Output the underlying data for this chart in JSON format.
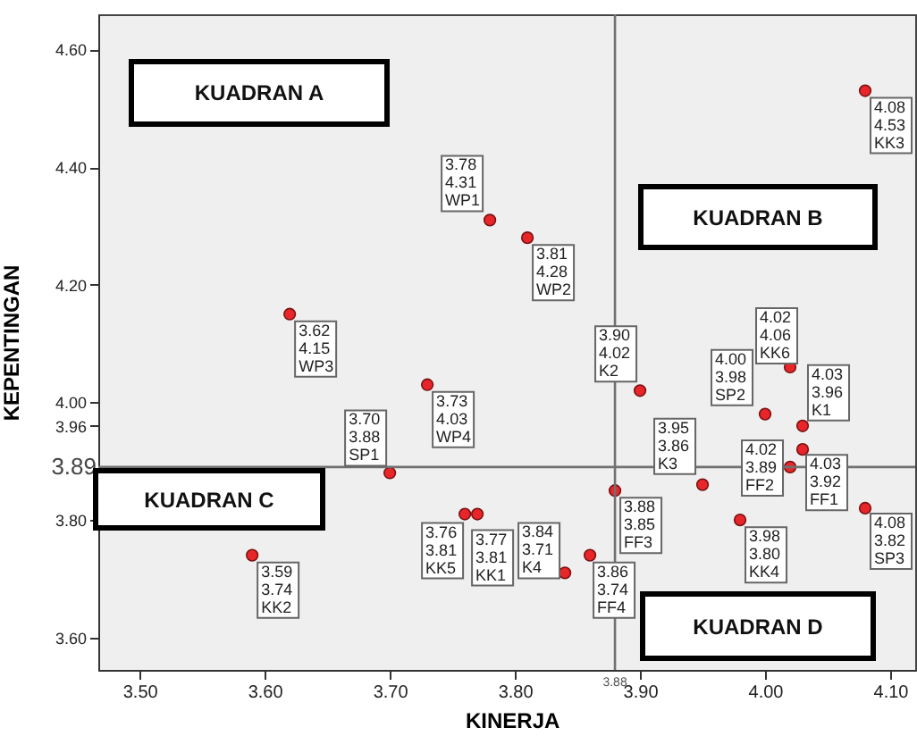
{
  "chart_data": {
    "type": "scatter",
    "xlabel": "KINERJA",
    "ylabel": "KEPENTINGAN",
    "xlim": [
      3.467,
      4.12
    ],
    "xticks": [
      {
        "value": 3.5,
        "label": "3.50"
      },
      {
        "value": 3.6,
        "label": "3.60"
      },
      {
        "value": 3.7,
        "label": "3.70"
      },
      {
        "value": 3.8,
        "label": "3.80"
      },
      {
        "value": 3.9,
        "label": "3.90"
      },
      {
        "value": 4.0,
        "label": "4.00"
      },
      {
        "value": 4.1,
        "label": "4.10"
      }
    ],
    "ylim": [
      3.545,
      4.66
    ],
    "yticks": [
      {
        "value": 3.6,
        "label": "3.60"
      },
      {
        "value": 3.8,
        "label": "3.80"
      },
      {
        "value": 4.0,
        "label": "4.00"
      },
      {
        "value": 4.2,
        "label": "4.20"
      },
      {
        "value": 4.4,
        "label": "4.40"
      },
      {
        "value": 4.6,
        "label": "4.60"
      },
      {
        "value": 3.96,
        "label": "3.96"
      }
    ],
    "marker": "circle",
    "series": [
      {
        "color": "#e8262a",
        "x": [
          3.78,
          3.81,
          3.62,
          3.73,
          3.7,
          3.59,
          3.76,
          3.77,
          3.84,
          3.86,
          3.88,
          3.9,
          3.95,
          3.98,
          4.0,
          4.02,
          4.03,
          4.02,
          4.03,
          4.08,
          4.08
        ],
        "values": [
          4.31,
          4.28,
          4.15,
          4.03,
          3.88,
          3.74,
          3.81,
          3.81,
          3.71,
          3.74,
          3.85,
          4.02,
          3.86,
          3.8,
          3.98,
          4.06,
          3.96,
          3.89,
          3.92,
          3.82,
          4.53
        ],
        "value_labels": [
          "3.78\n4.31\nWP1",
          "3.81\n4.28\nWP2",
          "3.62\n4.15\nWP3",
          "3.73\n4.03\nWP4",
          "3.70\n3.88\nSP1",
          "3.59\n3.74\nKK2",
          "3.76\n3.81\nKK5",
          "3.77\n3.81\nKK1",
          "3.84\n3.71\nK4",
          "3.86\n3.74\nFF4",
          "3.88\n3.85\nFF3",
          "3.90\n4.02\nK2",
          "3.95\n3.86\nK3",
          "3.98\n3.80\nKK4",
          "4.00\n3.98\nSP2",
          "4.02\n4.06\nKK6",
          "4.03\n3.96\nK1",
          "4.02\n3.89\nFF2",
          "4.03\n3.92\nFF1",
          "4.08\n3.82\nSP3",
          "4.08\n4.53\nKK3"
        ]
      }
    ],
    "ref_lines": [
      {
        "axis": "x",
        "value": 3.88,
        "label": "3.88",
        "color": "#707070"
      },
      {
        "axis": "y",
        "value": 3.89,
        "label": "3.89",
        "color": "#707070"
      }
    ],
    "annotations": [
      "KUADRAN A",
      "KUADRAN B",
      "KUADRAN C",
      "KUADRAN D"
    ]
  }
}
